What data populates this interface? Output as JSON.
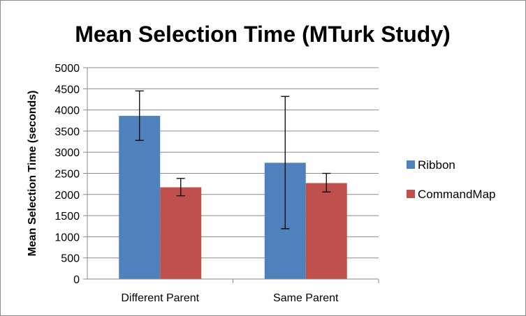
{
  "chart_data": {
    "type": "bar",
    "title": "Mean Selection Time (MTurk Study)",
    "ylabel": "Mean Selection Time (seconds)",
    "xlabel": "",
    "categories": [
      "Different Parent",
      "Same Parent"
    ],
    "ylim": [
      0,
      5000
    ],
    "ytick_step": 500,
    "grid": true,
    "legend_position": "right",
    "series": [
      {
        "name": "Ribbon",
        "color": "#4F81BD",
        "values": [
          3860,
          2750
        ],
        "error_low": [
          3280,
          1190
        ],
        "error_high": [
          4450,
          4320
        ]
      },
      {
        "name": "CommandMap",
        "color": "#C0504D",
        "values": [
          2170,
          2270
        ],
        "error_low": [
          1970,
          2060
        ],
        "error_high": [
          2380,
          2500
        ]
      }
    ]
  }
}
